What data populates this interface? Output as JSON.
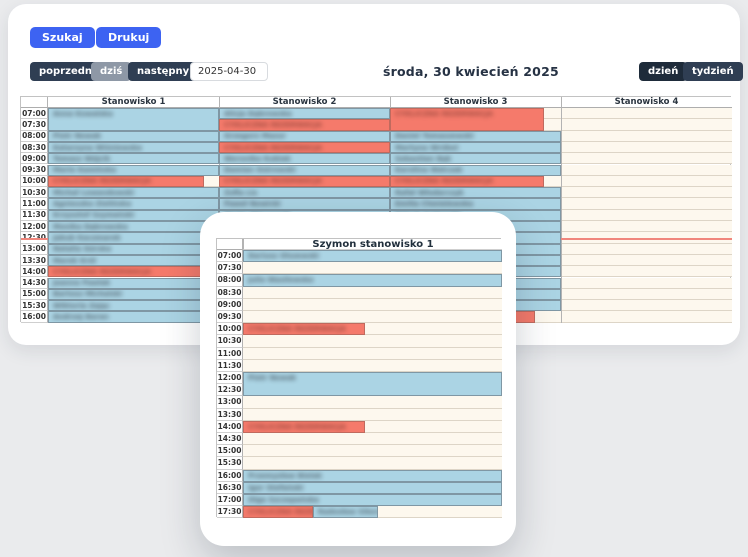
{
  "toolbar": {
    "search_label": "Szukaj",
    "print_label": "Drukuj"
  },
  "nav": {
    "prev_label": "poprzedni",
    "today_label": "dziś",
    "next_label": "następny",
    "date_value": "2025-04-30",
    "date_title": "środa, 30 kwiecień 2025",
    "day_label": "dzień",
    "week_label": "tydzień"
  },
  "colors": {
    "accent_blue": "#3d63f2",
    "navy_button": "#2f3e53",
    "busy_event": "#abd4e4",
    "recurring_event": "#f57a6b",
    "empty_slot": "#fdf8ee",
    "current_time_line": "#f0867c"
  },
  "schedule": {
    "recurring_label": "CYKLICZNA REZERWACJA",
    "times": [
      "07:00",
      "07:30",
      "08:00",
      "08:30",
      "09:00",
      "09:30",
      "10:00",
      "10:30",
      "11:00",
      "11:30",
      "12:00",
      "12:30",
      "13:00",
      "13:30",
      "14:00",
      "14:30",
      "15:00",
      "15:30",
      "16:00"
    ],
    "current_time_row": "12:30",
    "columns": [
      {
        "label": "Stanowisko 1",
        "events": [
          {
            "time": "07:00",
            "span": 2,
            "type": "busy",
            "label": "Anna Kowalska"
          },
          {
            "time": "08:00",
            "span": 1,
            "type": "busy",
            "label": "Piotr Nowak"
          },
          {
            "time": "08:30",
            "span": 1,
            "type": "busy",
            "label": "Katarzyna Wiśniewska"
          },
          {
            "time": "09:00",
            "span": 1,
            "type": "busy",
            "label": "Tomasz Wójcik"
          },
          {
            "time": "09:30",
            "span": 1,
            "type": "busy",
            "label": "Maria Kamińska"
          },
          {
            "time": "10:00",
            "span": 1,
            "type": "recurring",
            "label": "CYKLICZNA REZERWACJA",
            "w": 91
          },
          {
            "time": "10:30",
            "span": 1,
            "type": "busy",
            "label": "Michał Lewandowski"
          },
          {
            "time": "11:00",
            "span": 1,
            "type": "busy",
            "label": "Agnieszka Zielińska"
          },
          {
            "time": "11:30",
            "span": 1,
            "type": "busy",
            "label": "Krzysztof Szymański"
          },
          {
            "time": "12:00",
            "span": 1,
            "type": "busy",
            "label": "Monika Dąbrowska"
          },
          {
            "time": "12:30",
            "span": 1,
            "type": "busy",
            "label": "Jakub Kaczmarek"
          },
          {
            "time": "13:00",
            "span": 1,
            "type": "busy",
            "label": "Natalia Górska"
          },
          {
            "time": "13:30",
            "span": 1,
            "type": "busy",
            "label": "Marek Król"
          },
          {
            "time": "14:00",
            "span": 1,
            "type": "recurring",
            "label": "CYKLICZNA REZERWACJA"
          },
          {
            "time": "14:30",
            "span": 1,
            "type": "busy",
            "label": "Joanna Pawlak"
          },
          {
            "time": "15:00",
            "span": 1,
            "type": "busy",
            "label": "Bartosz Michalski"
          },
          {
            "time": "15:30",
            "span": 1,
            "type": "busy",
            "label": "Wiktoria Zając"
          },
          {
            "time": "16:00",
            "span": 1,
            "type": "busy",
            "label": "Andrzej Baran"
          }
        ]
      },
      {
        "label": "Stanowisko 2",
        "events": [
          {
            "time": "07:00",
            "span": 1,
            "type": "busy",
            "label": "Alicja Dąbrowska"
          },
          {
            "time": "07:30",
            "span": 1,
            "type": "recurring",
            "label": "CYKLICZNA REZERWACJA"
          },
          {
            "time": "08:00",
            "span": 1,
            "type": "busy",
            "label": "Grzegorz Mazur"
          },
          {
            "time": "08:30",
            "span": 1,
            "type": "recurring",
            "label": "CYKLICZNA REZERWACJA"
          },
          {
            "time": "09:00",
            "span": 1,
            "type": "busy",
            "label": "Weronika Kubiak"
          },
          {
            "time": "09:30",
            "span": 1,
            "type": "busy",
            "label": "Damian Ostrowski"
          },
          {
            "time": "10:00",
            "span": 1,
            "type": "recurring",
            "label": "CYKLICZNA REZERWACJA"
          },
          {
            "time": "10:30",
            "span": 1,
            "type": "busy",
            "label": "Zofia Lis"
          },
          {
            "time": "11:00",
            "span": 1,
            "type": "busy",
            "label": "Paweł Nowicki"
          },
          {
            "time": "11:30",
            "span": 1,
            "type": "busy",
            "label": "Marta Wieczorek"
          }
        ]
      },
      {
        "label": "Stanowisko 3",
        "events": [
          {
            "time": "07:00",
            "span": 2,
            "type": "recurring",
            "label": "CYKLICZNA REZERWACJA",
            "w": 90
          },
          {
            "time": "08:00",
            "span": 1,
            "type": "busy",
            "label": "Daniel Tomaszewski"
          },
          {
            "time": "08:30",
            "span": 1,
            "type": "busy",
            "label": "Martyna Wróbel"
          },
          {
            "time": "09:00",
            "span": 1,
            "type": "busy",
            "label": "Sebastian Bąk"
          },
          {
            "time": "09:30",
            "span": 1,
            "type": "busy",
            "label": "Karolina Walczak"
          },
          {
            "time": "10:00",
            "span": 1,
            "type": "recurring",
            "label": "CYKLICZNA REZERWACJA",
            "w": 90
          },
          {
            "time": "10:30",
            "span": 1,
            "type": "busy",
            "label": "Rafał Włodarczyk"
          },
          {
            "time": "11:00",
            "span": 1,
            "type": "busy",
            "label": "Emilia Chmielewska"
          },
          {
            "time": "11:30",
            "span": 1,
            "type": "busy",
            "label": "Patryk Sadowski"
          },
          {
            "time": "12:00",
            "span": 1,
            "type": "busy",
            "label": ""
          },
          {
            "time": "12:30",
            "span": 1,
            "type": "busy",
            "label": ""
          },
          {
            "time": "13:00",
            "span": 1,
            "type": "busy",
            "label": ""
          },
          {
            "time": "13:30",
            "span": 1,
            "type": "busy",
            "label": ""
          },
          {
            "time": "14:00",
            "span": 1,
            "type": "busy",
            "label": ""
          },
          {
            "time": "14:30",
            "span": 1,
            "type": "busy",
            "label": ""
          },
          {
            "time": "15:00",
            "span": 1,
            "type": "busy",
            "label": ""
          },
          {
            "time": "15:30",
            "span": 1,
            "type": "busy",
            "label": ""
          },
          {
            "time": "16:00",
            "span": 1,
            "type": "recurring",
            "label": "CYKLICZNA REZERWACJA",
            "w": 85
          }
        ]
      },
      {
        "label": "Stanowisko 4",
        "events": []
      }
    ]
  },
  "modal": {
    "title": "Szymon stanowisko 1",
    "times": [
      "07:00",
      "07:30",
      "08:00",
      "08:30",
      "09:00",
      "09:30",
      "10:00",
      "10:30",
      "11:00",
      "11:30",
      "12:00",
      "12:30",
      "13:00",
      "13:30",
      "14:00",
      "14:30",
      "15:00",
      "15:30",
      "16:00",
      "16:30",
      "17:00",
      "17:30"
    ],
    "events": [
      {
        "time": "07:00",
        "span": 1,
        "type": "busy",
        "label": "Dariusz Olszewski"
      },
      {
        "time": "08:00",
        "span": 1,
        "type": "busy",
        "label": "Julia Wasilewska"
      },
      {
        "time": "10:00",
        "span": 1,
        "type": "recurring",
        "label": "CYKLICZNA REZERWACJA",
        "w": 47
      },
      {
        "time": "12:00",
        "span": 2,
        "type": "busy",
        "label": "Piotr Nowak"
      },
      {
        "time": "14:00",
        "span": 1,
        "type": "recurring",
        "label": "CYKLICZNA REZERWACJA",
        "w": 47
      },
      {
        "time": "16:00",
        "span": 1,
        "type": "busy",
        "label": "Przemysław Bielak"
      },
      {
        "time": "16:30",
        "span": 1,
        "type": "busy",
        "label": "Igor Stefański"
      },
      {
        "time": "17:00",
        "span": 1,
        "type": "busy",
        "label": "Olga Szczepańska"
      },
      {
        "time": "17:30",
        "span": 1,
        "type": "recurring",
        "label": "CYKLICZNA REZERW",
        "w": 27
      },
      {
        "time": "17:30",
        "span": 1,
        "type": "busy",
        "label": "Radosław Sikora",
        "l": 27,
        "w": 25
      }
    ]
  }
}
